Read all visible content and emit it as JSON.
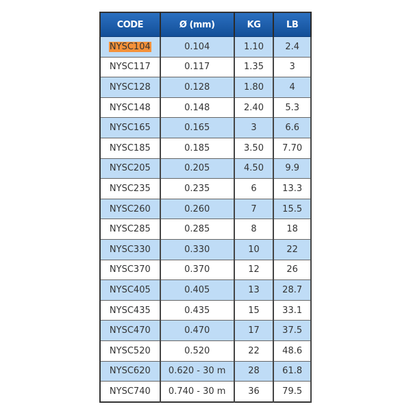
{
  "table": {
    "headers": [
      "CODE",
      "Ø (mm)",
      "KG",
      "LB"
    ],
    "highlight_color": "#f4913a",
    "header_color": "#1a5ca8",
    "alt_row_color": "#bfdcf6",
    "rows": [
      {
        "code": "NYSC104",
        "diameter": "0.104",
        "kg": "1.10",
        "lb": "2.4",
        "highlighted": true
      },
      {
        "code": "NYSC117",
        "diameter": "0.117",
        "kg": "1.35",
        "lb": "3"
      },
      {
        "code": "NYSC128",
        "diameter": "0.128",
        "kg": "1.80",
        "lb": "4"
      },
      {
        "code": "NYSC148",
        "diameter": "0.148",
        "kg": "2.40",
        "lb": "5.3"
      },
      {
        "code": "NYSC165",
        "diameter": "0.165",
        "kg": "3",
        "lb": "6.6"
      },
      {
        "code": "NYSC185",
        "diameter": "0.185",
        "kg": "3.50",
        "lb": "7.70"
      },
      {
        "code": "NYSC205",
        "diameter": "0.205",
        "kg": "4.50",
        "lb": "9.9"
      },
      {
        "code": "NYSC235",
        "diameter": "0.235",
        "kg": "6",
        "lb": "13.3"
      },
      {
        "code": "NYSC260",
        "diameter": "0.260",
        "kg": "7",
        "lb": "15.5"
      },
      {
        "code": "NYSC285",
        "diameter": "0.285",
        "kg": "8",
        "lb": "18"
      },
      {
        "code": "NYSC330",
        "diameter": "0.330",
        "kg": "10",
        "lb": "22"
      },
      {
        "code": "NYSC370",
        "diameter": "0.370",
        "kg": "12",
        "lb": "26"
      },
      {
        "code": "NYSC405",
        "diameter": "0.405",
        "kg": "13",
        "lb": "28.7"
      },
      {
        "code": "NYSC435",
        "diameter": "0.435",
        "kg": "15",
        "lb": "33.1"
      },
      {
        "code": "NYSC470",
        "diameter": "0.470",
        "kg": "17",
        "lb": "37.5"
      },
      {
        "code": "NYSC520",
        "diameter": "0.520",
        "kg": "22",
        "lb": "48.6"
      },
      {
        "code": "NYSC620",
        "diameter": "0.620 - 30 m",
        "kg": "28",
        "lb": "61.8"
      },
      {
        "code": "NYSC740",
        "diameter": "0.740 - 30 m",
        "kg": "36",
        "lb": "79.5"
      }
    ]
  }
}
